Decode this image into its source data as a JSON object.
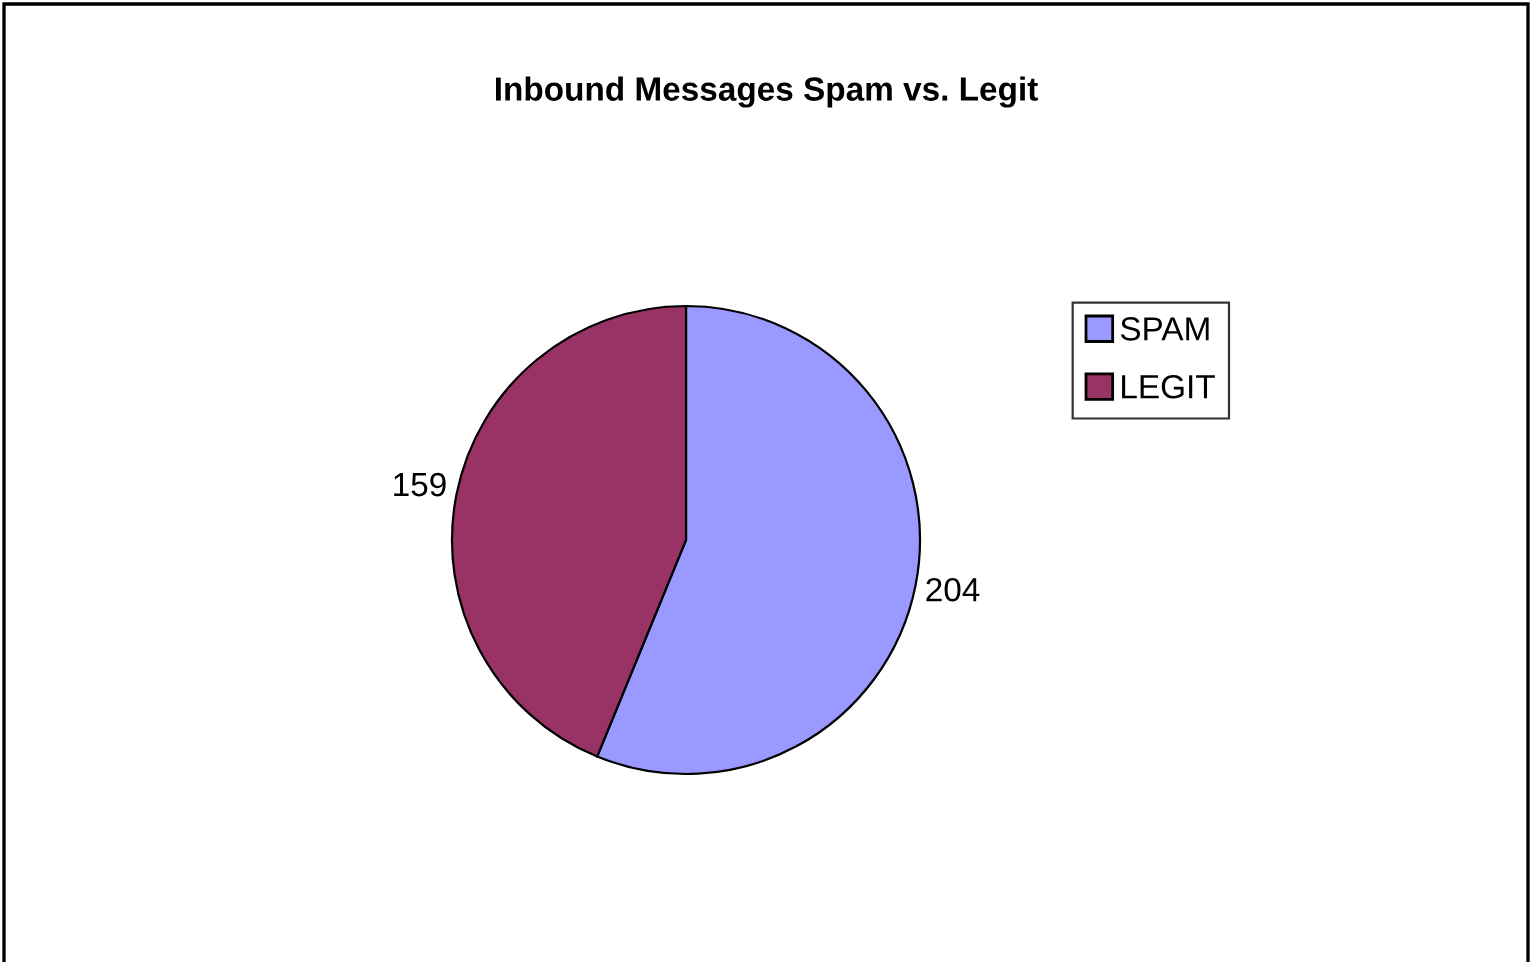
{
  "chart_data": {
    "type": "pie",
    "title": "Inbound Messages Spam vs. Legit",
    "categories": [
      "SPAM",
      "LEGIT"
    ],
    "values": [
      204,
      159
    ],
    "colors": [
      "#9999ff",
      "#993366"
    ],
    "data_labels": true,
    "legend": "right"
  }
}
